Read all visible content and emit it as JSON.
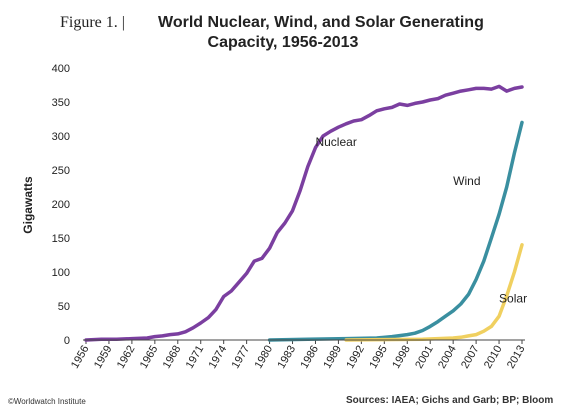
{
  "figure": {
    "prefix": "Figure 1. |",
    "title_line1": "World Nuclear, Wind, and Solar Generating",
    "title_line2": "Capacity, 1956-2013"
  },
  "credit": "©Worldwatch Institute",
  "source": "Sources: IAEA; Gichs and Garb; BP; Bloom",
  "chart_data": {
    "type": "line",
    "title": "World Nuclear, Wind, and Solar Generating Capacity, 1956-2013",
    "xlabel": "",
    "ylabel": "Gigawatts",
    "xlim": [
      1956,
      2013
    ],
    "ylim": [
      0,
      400
    ],
    "yticks": [
      0,
      50,
      100,
      150,
      200,
      250,
      300,
      350,
      400
    ],
    "xticks": [
      1956,
      1959,
      1962,
      1965,
      1968,
      1971,
      1974,
      1977,
      1980,
      1983,
      1986,
      1989,
      1992,
      1995,
      1998,
      2001,
      2004,
      2007,
      2010,
      2013
    ],
    "grid": false,
    "legend": "inline labels",
    "series": [
      {
        "name": "Nuclear",
        "color": "#7B3FA0",
        "label_pos": [
          1986,
          285
        ],
        "x": [
          1956,
          1958,
          1960,
          1962,
          1964,
          1965,
          1966,
          1967,
          1968,
          1969,
          1970,
          1971,
          1972,
          1973,
          1974,
          1975,
          1976,
          1977,
          1978,
          1979,
          1980,
          1981,
          1982,
          1983,
          1984,
          1985,
          1986,
          1987,
          1988,
          1989,
          1990,
          1991,
          1992,
          1993,
          1994,
          1995,
          1996,
          1997,
          1998,
          1999,
          2000,
          2001,
          2002,
          2003,
          2004,
          2005,
          2006,
          2007,
          2008,
          2009,
          2010,
          2011,
          2012,
          2013
        ],
        "values": [
          0,
          1,
          1,
          2,
          3,
          5,
          6,
          8,
          9,
          12,
          18,
          25,
          33,
          45,
          64,
          72,
          85,
          98,
          116,
          120,
          135,
          158,
          172,
          190,
          220,
          255,
          283,
          300,
          307,
          313,
          318,
          322,
          324,
          330,
          337,
          340,
          342,
          347,
          345,
          348,
          350,
          353,
          355,
          360,
          363,
          366,
          368,
          370,
          370,
          369,
          373,
          366,
          370,
          372
        ]
      },
      {
        "name": "Wind",
        "color": "#3A8FA0",
        "label_pos": [
          2004,
          228
        ],
        "x": [
          1980,
          1985,
          1990,
          1994,
          1996,
          1998,
          1999,
          2000,
          2001,
          2002,
          2003,
          2004,
          2005,
          2006,
          2007,
          2008,
          2009,
          2010,
          2011,
          2012,
          2013
        ],
        "values": [
          0,
          1,
          2,
          3,
          5,
          8,
          10,
          14,
          20,
          27,
          35,
          43,
          53,
          67,
          89,
          116,
          150,
          185,
          225,
          275,
          320
        ]
      },
      {
        "name": "Solar",
        "color": "#F0D060",
        "label_pos": [
          2010,
          55
        ],
        "x": [
          1990,
          2000,
          2002,
          2004,
          2005,
          2006,
          2007,
          2008,
          2009,
          2010,
          2011,
          2012,
          2013
        ],
        "values": [
          0,
          1,
          2,
          3,
          4,
          6,
          8,
          13,
          20,
          35,
          65,
          100,
          140
        ]
      }
    ]
  }
}
